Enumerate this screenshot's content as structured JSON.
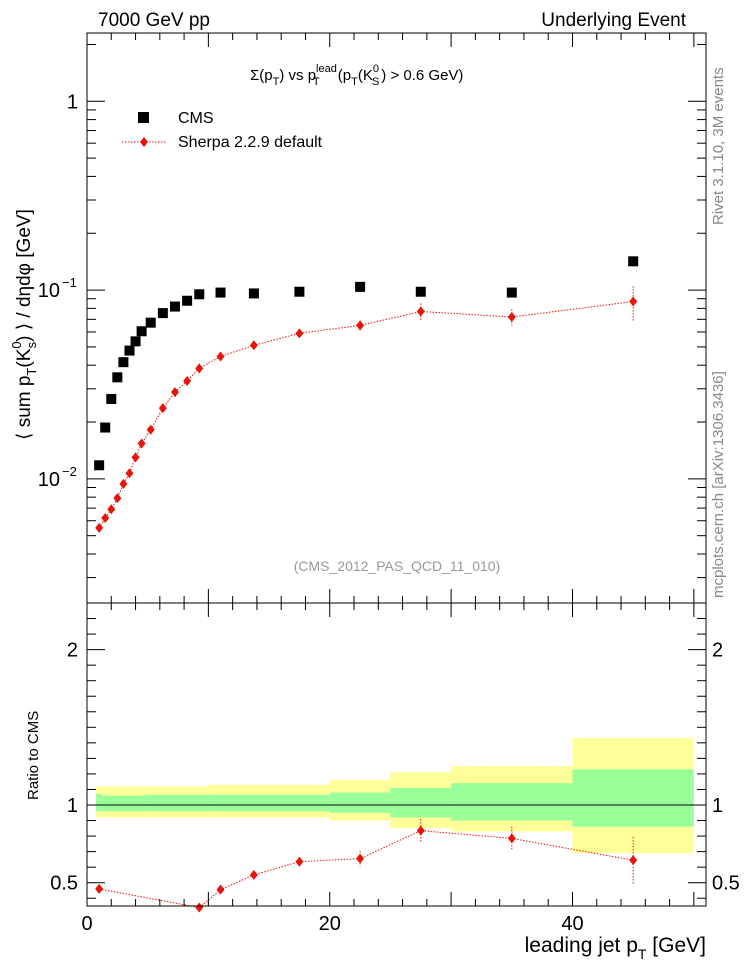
{
  "header": {
    "left": "7000 GeV pp",
    "right": "Underlying Event"
  },
  "side_labels": {
    "rivet": "Rivet 3.1.10,  3M events",
    "mcplots": "mcplots.cern.ch [arXiv:1306.3436]"
  },
  "plot_title": {
    "a": "Σ(p",
    "a_sub": "T",
    "b": ") vs p",
    "b_sup": "lead",
    "b_sub": "T",
    "c": " (p",
    "c_sub": "T",
    "d": "(K",
    "d_sup": "0",
    "d_sub": "S",
    "e": ") > 0.6 GeV)"
  },
  "watermark": "(CMS_2012_PAS_QCD_11_010)",
  "y_axis_label": {
    "a": "⟨ sum p",
    "a_sub": "T",
    "b": "(K",
    "b_sup": "0",
    "b_sub": "s",
    "c": ") ⟩ / dηdφ [GeV]"
  },
  "ratio_axis_label": "Ratio to CMS",
  "x_axis_label": {
    "a": "leading jet p",
    "a_sub": "T",
    "b": " [GeV]"
  },
  "chart_data": [
    {
      "type": "scatter",
      "panel": "main",
      "yscale": "log",
      "xlim": [
        0,
        51
      ],
      "ylim": [
        0.0022,
        2.3
      ],
      "xticks": [
        0,
        20,
        40
      ],
      "yticks": [
        {
          "value": 0.01,
          "label": "10",
          "sup": "−2"
        },
        {
          "value": 0.1,
          "label": "10",
          "sup": "−1"
        },
        {
          "value": 1,
          "label": "1",
          "sup": ""
        }
      ],
      "legend_position": "top-left",
      "series": [
        {
          "name": "CMS",
          "marker": "square",
          "color": "#000000",
          "x": [
            1,
            1.5,
            2,
            2.5,
            3,
            3.5,
            4,
            4.5,
            5.25,
            6.25,
            7.25,
            8.25,
            9.25,
            11,
            13.75,
            17.5,
            22.5,
            27.5,
            35,
            45
          ],
          "y": [
            0.0118,
            0.0187,
            0.0265,
            0.0345,
            0.0415,
            0.0478,
            0.0535,
            0.0605,
            0.0672,
            0.0755,
            0.0818,
            0.0878,
            0.095,
            0.097,
            0.096,
            0.098,
            0.104,
            0.098,
            0.097,
            0.142
          ]
        },
        {
          "name": "Sherpa 2.2.9 default",
          "marker": "diamond",
          "color": "#e8140a",
          "x": [
            1,
            1.5,
            2,
            2.5,
            3,
            3.5,
            4,
            4.5,
            5.25,
            6.25,
            7.25,
            8.25,
            9.25,
            11,
            13.75,
            17.5,
            22.5,
            27.5,
            35,
            45
          ],
          "y": [
            0.0055,
            0.0062,
            0.0069,
            0.0079,
            0.0094,
            0.0107,
            0.013,
            0.0154,
            0.0182,
            0.0237,
            0.0288,
            0.033,
            0.0385,
            0.0445,
            0.051,
            0.059,
            0.065,
            0.077,
            0.072,
            0.087
          ],
          "yerr": [
            0,
            0,
            0,
            0,
            0,
            0,
            0,
            0,
            0,
            0,
            0,
            0,
            0,
            0.002,
            0.002,
            0.0025,
            0.004,
            0.008,
            0.007,
            0.018
          ]
        }
      ]
    },
    {
      "type": "band",
      "panel": "ratio",
      "ylim": [
        0.35,
        2.3
      ],
      "yticks": [
        0.5,
        1,
        2
      ],
      "reference_line": 1,
      "bins": [
        {
          "x0": 0.75,
          "x1": 1.25,
          "y_lo": 0.92,
          "y_hi": 1.12,
          "g_lo": 0.96,
          "g_hi": 1.07
        },
        {
          "x0": 1.25,
          "x1": 4.75,
          "y_lo": 0.92,
          "y_hi": 1.12,
          "g_lo": 0.96,
          "g_hi": 1.06
        },
        {
          "x0": 4.75,
          "x1": 10,
          "y_lo": 0.92,
          "y_hi": 1.12,
          "g_lo": 0.96,
          "g_hi": 1.065
        },
        {
          "x0": 10,
          "x1": 20,
          "y_lo": 0.92,
          "y_hi": 1.13,
          "g_lo": 0.96,
          "g_hi": 1.065
        },
        {
          "x0": 20,
          "x1": 25,
          "y_lo": 0.9,
          "y_hi": 1.16,
          "g_lo": 0.95,
          "g_hi": 1.08
        },
        {
          "x0": 25,
          "x1": 30,
          "y_lo": 0.85,
          "y_hi": 1.21,
          "g_lo": 0.92,
          "g_hi": 1.11
        },
        {
          "x0": 30,
          "x1": 40,
          "y_lo": 0.83,
          "y_hi": 1.25,
          "g_lo": 0.9,
          "g_hi": 1.14
        },
        {
          "x0": 40,
          "x1": 50,
          "y_lo": 0.69,
          "y_hi": 1.43,
          "g_lo": 0.86,
          "g_hi": 1.23
        }
      ],
      "series": [
        {
          "name": "Sherpa 2.2.9 default",
          "color": "#e8140a",
          "x": [
            1,
            9.25,
            11,
            13.75,
            17.5,
            22.5,
            27.5,
            35,
            45
          ],
          "y": [
            0.46,
            0.34,
            0.455,
            0.55,
            0.635,
            0.655,
            0.835,
            0.785,
            0.645
          ],
          "yerr": [
            0,
            0,
            0.015,
            0.025,
            0.03,
            0.05,
            0.075,
            0.075,
            0.15
          ]
        }
      ]
    }
  ]
}
